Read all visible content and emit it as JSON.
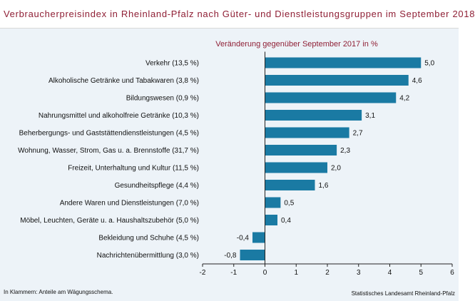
{
  "title": "Verbraucherpreisindex in Rheinland-Pfalz nach Güter- und Dienstleistungsgruppen im September 2018",
  "footnote": "In Klammern: Anteile am Wägungsschema.",
  "source": "Statistisches Landesamt Rheinland-Pfalz",
  "colors": {
    "bar": "#1a7aa3",
    "title": "#8f1f35",
    "background": "#edf3f8"
  },
  "chart_data": {
    "type": "bar",
    "orientation": "horizontal",
    "subtitle": "Veränderung  gegenüber September 2017 in %",
    "categories": [
      "Verkehr (13,5 %)",
      "Alkoholische Getränke und Tabakwaren (3,8 %)",
      "Bildungswesen (0,9 %)",
      "Nahrungsmittel und alkoholfreie Getränke (10,3 %)",
      "Beherbergungs- und Gaststättendienstleistungen (4,5 %)",
      "Wohnung, Wasser, Strom, Gas u. a. Brennstoffe (31,7 %)",
      "Freizeit, Unterhaltung und Kultur (11,5 %)",
      "Gesundheitspflege (4,4 %)",
      "Andere Waren und Dienstleistungen (7,0 %)",
      "Möbel, Leuchten, Geräte u. a. Haushaltszubehör (5,0 %)",
      "Bekleidung und Schuhe (4,5 %)",
      "Nachrichtenübermittlung (3,0 %)"
    ],
    "values": [
      5.0,
      4.6,
      4.2,
      3.1,
      2.7,
      2.3,
      2.0,
      1.6,
      0.5,
      0.4,
      -0.4,
      -0.8
    ],
    "value_labels": [
      "5,0",
      "4,6",
      "4,2",
      "3,1",
      "2,7",
      "2,3",
      "2,0",
      "1,6",
      "0,5",
      "0,4",
      "-0,4",
      "-0,8"
    ],
    "xlim": [
      -2,
      6
    ],
    "xticks": [
      -2,
      -1,
      0,
      1,
      2,
      3,
      4,
      5,
      6
    ],
    "xtick_labels": [
      "-2",
      "-1",
      "0",
      "1",
      "2",
      "3",
      "4",
      "5",
      "6"
    ],
    "grid": false
  }
}
